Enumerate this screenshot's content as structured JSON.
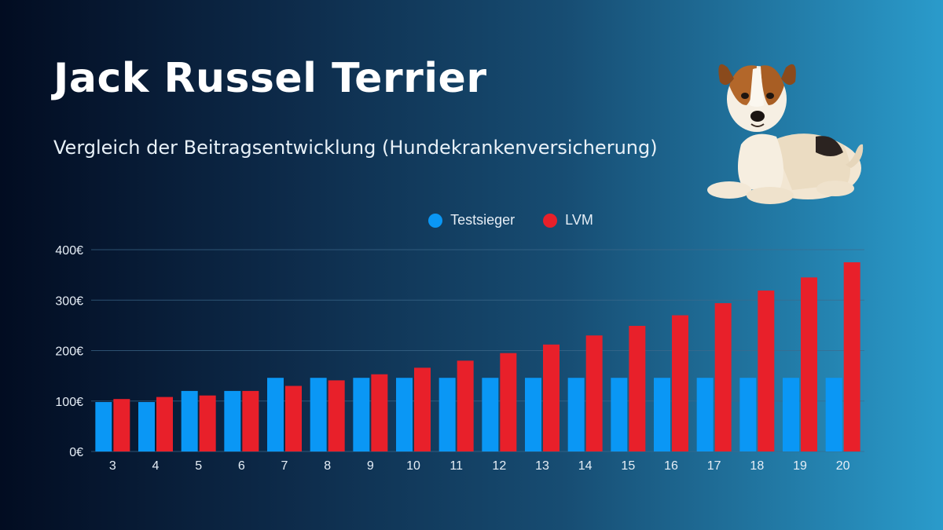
{
  "header": {
    "title": "Jack Russel Terrier",
    "subtitle": "Vergleich der Beitragsentwicklung (Hundekrankenversicherung)"
  },
  "colors": {
    "testsieger": "#0a97f5",
    "lvm": "#e8202a",
    "grid": "#3d6a8c"
  },
  "chart_data": {
    "type": "bar",
    "categories": [
      "3",
      "4",
      "5",
      "6",
      "7",
      "8",
      "9",
      "10",
      "11",
      "12",
      "13",
      "14",
      "15",
      "16",
      "17",
      "18",
      "19",
      "20"
    ],
    "series": [
      {
        "name": "Testsieger",
        "values": [
          98,
          98,
          120,
          120,
          146,
          146,
          146,
          146,
          146,
          146,
          146,
          146,
          146,
          146,
          146,
          146,
          146,
          146
        ]
      },
      {
        "name": "LVM",
        "values": [
          104,
          108,
          111,
          120,
          130,
          141,
          153,
          166,
          180,
          195,
          212,
          230,
          249,
          270,
          294,
          319,
          345,
          375
        ]
      }
    ],
    "y_ticks": [
      "0€",
      "100€",
      "200€",
      "300€",
      "400€"
    ],
    "ylim": [
      0,
      400
    ],
    "grid": true,
    "legend_position": "top-center"
  }
}
